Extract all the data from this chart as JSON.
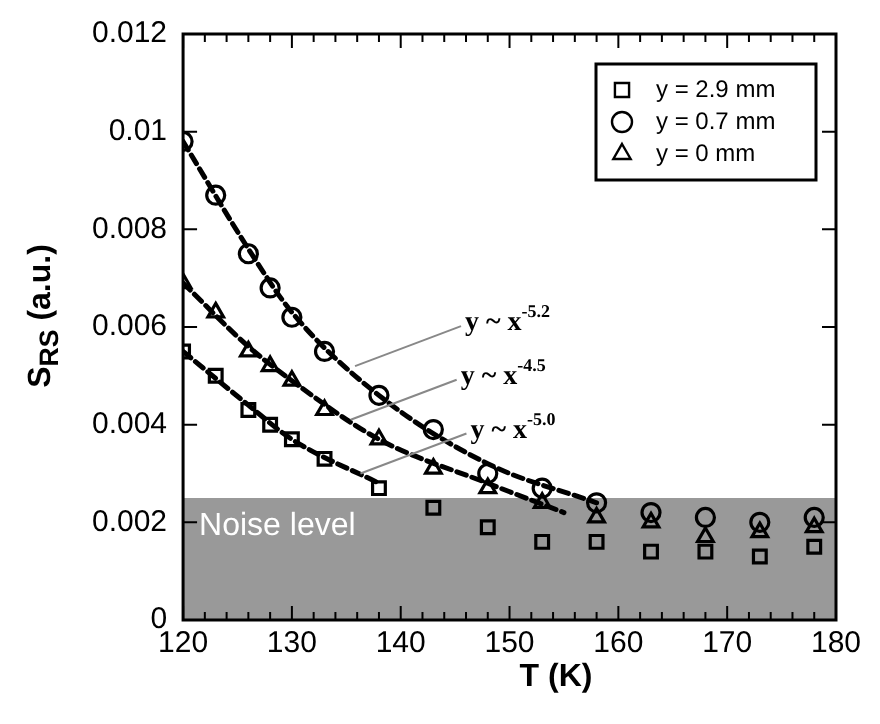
{
  "chart_data": {
    "type": "scatter",
    "xlabel": "T (K)",
    "ylabel": "S$_{RS}$ (a.u.)",
    "xlim": [
      120,
      180
    ],
    "ylim": [
      0,
      0.012
    ],
    "xticks": [
      120,
      {
        "value": 122,
        "label": null
      },
      {
        "value": 124,
        "label": null
      },
      {
        "value": 126,
        "label": null
      },
      {
        "value": 128,
        "label": null
      },
      130,
      {
        "value": 132,
        "label": null
      },
      {
        "value": 134,
        "label": null
      },
      {
        "value": 136,
        "label": null
      },
      {
        "value": 138,
        "label": null
      },
      140,
      {
        "value": 142,
        "label": null
      },
      {
        "value": 144,
        "label": null
      },
      {
        "value": 146,
        "label": null
      },
      {
        "value": 148,
        "label": null
      },
      150,
      {
        "value": 152,
        "label": null
      },
      {
        "value": 154,
        "label": null
      },
      {
        "value": 156,
        "label": null
      },
      {
        "value": 158,
        "label": null
      },
      160,
      {
        "value": 162,
        "label": null
      },
      {
        "value": 164,
        "label": null
      },
      {
        "value": 166,
        "label": null
      },
      {
        "value": 168,
        "label": null
      },
      170,
      {
        "value": 172,
        "label": null
      },
      {
        "value": 174,
        "label": null
      },
      {
        "value": 176,
        "label": null
      },
      {
        "value": 178,
        "label": null
      },
      180
    ],
    "yticks": [
      0,
      0.002,
      0.004,
      0.006,
      0.008,
      0.01,
      0.012
    ],
    "grid": false,
    "legend": "top right",
    "bands": [
      {
        "axis": "y",
        "from": 0,
        "to": 0.0025,
        "label": "Noise level",
        "color": "#999999"
      }
    ],
    "annotations": [
      {
        "text": "y ~ x$^{-5.2}$",
        "x": 135.8,
        "y": 0.0052
      },
      {
        "text": "y ~ x$^{-4.5}$",
        "x": 135.4,
        "y": 0.0041
      },
      {
        "text": "y ~ x$^{-5.0}$",
        "x": 136.3,
        "y": 0.003
      }
    ],
    "series": [
      {
        "name": "y = 2.9 mm",
        "color": "#000000",
        "marker": "square",
        "x": [
          120,
          123,
          126,
          128,
          130,
          133,
          138,
          143,
          148,
          153,
          158,
          163,
          168,
          173,
          178
        ],
        "values": [
          0.0055,
          0.005,
          0.0043,
          0.004,
          0.0037,
          0.0033,
          0.0027,
          0.0023,
          0.0019,
          0.0016,
          0.0016,
          0.0014,
          0.0014,
          0.0013,
          0.0015
        ]
      },
      {
        "name": "y = 0.7 mm",
        "color": "#000000",
        "marker": "circle",
        "x": [
          120,
          123,
          126,
          128,
          130,
          133,
          138,
          143,
          148,
          153,
          158,
          163,
          168,
          173,
          178
        ],
        "values": [
          0.0098,
          0.0087,
          0.0075,
          0.0068,
          0.0062,
          0.0055,
          0.0046,
          0.0039,
          0.003,
          0.0027,
          0.0024,
          0.0022,
          0.0021,
          0.002,
          0.0021
        ]
      },
      {
        "name": "y = 0 mm",
        "color": "#000000",
        "marker": "triangle",
        "x": [
          120,
          123,
          126,
          128,
          130,
          133,
          138,
          143,
          148,
          153,
          158,
          163,
          168,
          173,
          178
        ],
        "values": [
          0.0069,
          0.0063,
          0.0055,
          0.0052,
          0.0049,
          0.0043,
          0.0037,
          0.0031,
          0.0027,
          0.0024,
          0.0021,
          0.002,
          0.0017,
          0.0018,
          0.0019
        ]
      },
      {
        "type": "line",
        "color": "#000000",
        "marker": "none",
        "line_style": "dashed",
        "x": [
          120,
          126,
          130,
          138,
          148,
          158
        ],
        "values": [
          0.0098,
          0.0076,
          0.0063,
          0.0046,
          0.0032,
          0.0024
        ]
      },
      {
        "type": "line",
        "color": "#000000",
        "marker": "none",
        "line_style": "dashed",
        "x": [
          120,
          126,
          130,
          138,
          148,
          155
        ],
        "values": [
          0.0069,
          0.0056,
          0.0049,
          0.0037,
          0.0028,
          0.0022
        ]
      },
      {
        "type": "line",
        "color": "#000000",
        "marker": "none",
        "line_style": "dashed",
        "x": [
          120,
          126,
          130,
          138
        ],
        "values": [
          0.0055,
          0.0044,
          0.0037,
          0.0028
        ]
      }
    ]
  }
}
